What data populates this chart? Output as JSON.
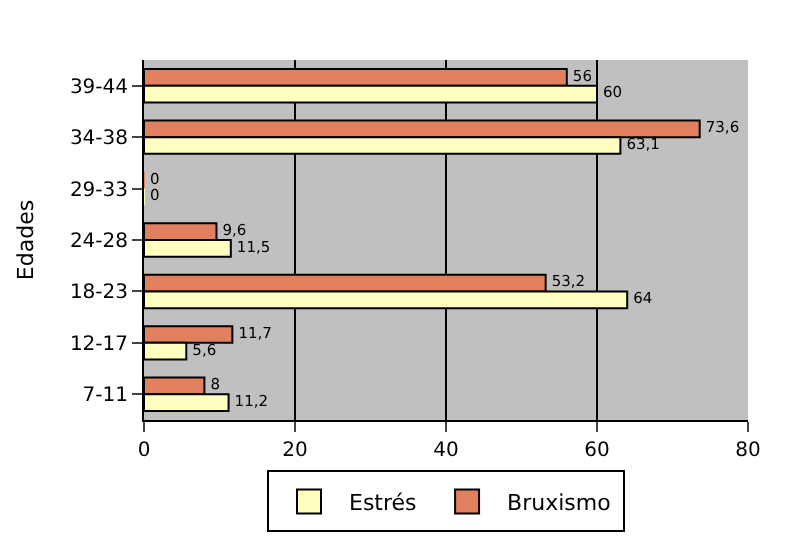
{
  "chart_data": {
    "type": "bar",
    "orientation": "horizontal",
    "ylabel": "Edades",
    "categories": [
      "39-44",
      "34-38",
      "29-33",
      "24-28",
      "18-23",
      "12-17",
      "7-11"
    ],
    "series": [
      {
        "name": "Bruxismo",
        "color": "#e0805e",
        "values": [
          56,
          73.6,
          0,
          9.6,
          53.2,
          11.7,
          8
        ],
        "value_labels": [
          "56",
          "73,6",
          "0",
          "9,6",
          "53,2",
          "11,7",
          "8"
        ]
      },
      {
        "name": "Estrés",
        "color": "#ffffc0",
        "values": [
          60,
          63.1,
          0,
          11.5,
          64,
          5.6,
          11.2
        ],
        "value_labels": [
          "60",
          "63,1",
          "0",
          "11,5",
          "64",
          "5,6",
          "11,2"
        ]
      }
    ],
    "xlim": [
      0,
      80
    ],
    "xticks": [
      0,
      20,
      40,
      60,
      80
    ],
    "grid": "x",
    "legend": "bottom"
  }
}
